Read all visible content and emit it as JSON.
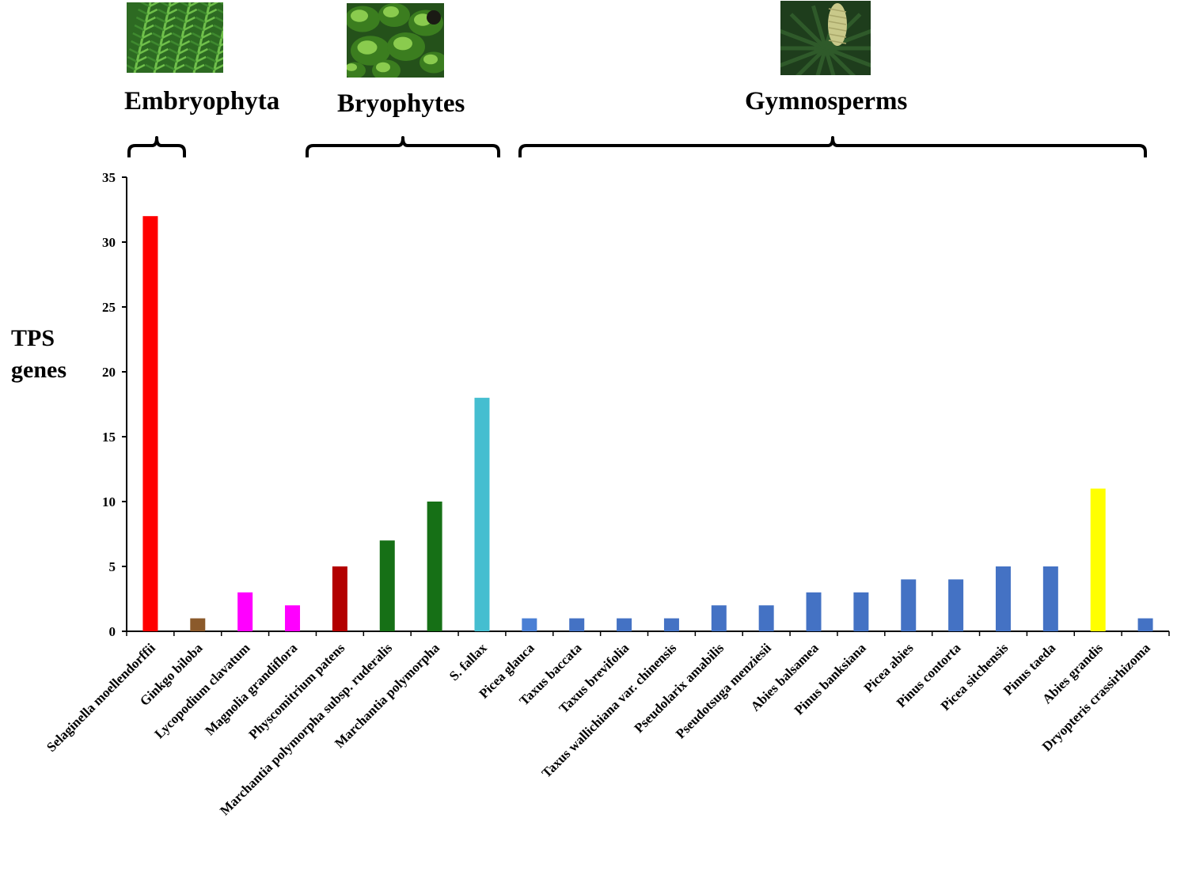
{
  "groups": [
    {
      "label": "Embryophyta",
      "from": 0,
      "to": 0
    },
    {
      "label": "Bryophytes",
      "from": 3,
      "to": 7
    },
    {
      "label": "Gymnosperms",
      "from": 8,
      "to": 21
    }
  ],
  "thumbnails": [
    {
      "icon": "fern-frond-photo-icon",
      "colors": [
        "#3f8a2f",
        "#6fbf4a",
        "#2d6a22"
      ]
    },
    {
      "icon": "liverwort-photo-icon",
      "colors": [
        "#3b7d1f",
        "#8acb4e",
        "#24511a"
      ]
    },
    {
      "icon": "conifer-cone-photo-icon",
      "colors": [
        "#2f5a2a",
        "#c9c98a",
        "#1e3d1c"
      ]
    }
  ],
  "chart_data": {
    "type": "bar",
    "title": "",
    "xlabel": "",
    "ylabel": "TPS genes",
    "ylim": [
      0,
      35
    ],
    "yticks": [
      0,
      5,
      10,
      15,
      20,
      25,
      30,
      35
    ],
    "categories": [
      "Selaginella moellendorffii",
      "Ginkgo biloba",
      "Lycopodium clavatum",
      "Magnolia grandiflora",
      "Physcomitrium patens",
      "Marchantia polymorpha subsp. ruderalis",
      "Marchantia polymorpha",
      "S. fallax",
      "Picea glauca",
      "Taxus baccata",
      "Taxus brevifolia",
      "Taxus wallichiana var. chinensis",
      "Pseudolarix amabilis",
      "Pseudotsuga menziesii",
      "Abies balsamea",
      "Pinus banksiana",
      "Picea abies",
      "Pinus contorta",
      "Picea sitchensis",
      "Pinus taeda",
      "Abies grandis",
      "Dryopteris crassirhizoma"
    ],
    "values": [
      32,
      1,
      3,
      2,
      5,
      7,
      10,
      18,
      1,
      1,
      1,
      1,
      2,
      2,
      3,
      3,
      4,
      4,
      5,
      5,
      11,
      1
    ],
    "colors": [
      "#ff0000",
      "#8b5a2b",
      "#ff00ff",
      "#ff00ff",
      "#b30000",
      "#167016",
      "#167016",
      "#45bed0",
      "#4a7fd4",
      "#4472c4",
      "#4472c4",
      "#4472c4",
      "#4472c4",
      "#4472c4",
      "#4472c4",
      "#4472c4",
      "#4472c4",
      "#4472c4",
      "#4472c4",
      "#4472c4",
      "#ffff00",
      "#4472c4"
    ],
    "grid": false,
    "legend": "none"
  }
}
